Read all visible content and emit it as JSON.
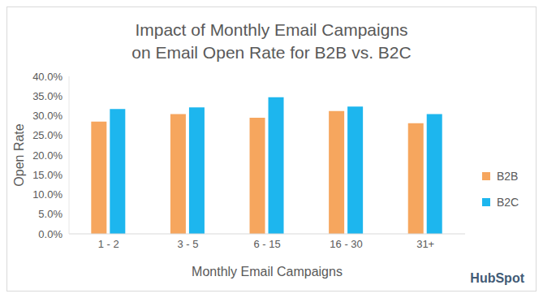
{
  "chart_data": {
    "type": "bar",
    "title": "Impact of Monthly Email Campaigns\non Email Open Rate for B2B vs. B2C",
    "x_label": "Monthly Email Campaigns",
    "y_label": "Open Rate",
    "categories": [
      "1 - 2",
      "3 - 5",
      "6 - 15",
      "16 - 30",
      "31+"
    ],
    "series": [
      {
        "name": "B2B",
        "color": "#F6A65E",
        "values": [
          28.5,
          30.4,
          29.5,
          31.2,
          28.1
        ]
      },
      {
        "name": "B2C",
        "color": "#1DB6EE",
        "values": [
          31.7,
          32.1,
          34.7,
          32.3,
          30.4
        ]
      }
    ],
    "ylim": [
      0,
      40
    ],
    "yticks": [
      {
        "value": 0,
        "label": "0.0%"
      },
      {
        "value": 5,
        "label": "5.0%"
      },
      {
        "value": 10,
        "label": "10.0%"
      },
      {
        "value": 15,
        "label": "15.0%"
      },
      {
        "value": 20,
        "label": "20.0%"
      },
      {
        "value": 25,
        "label": "25.0%"
      },
      {
        "value": 30,
        "label": "30.0%"
      },
      {
        "value": 35,
        "label": "35.0%"
      },
      {
        "value": 40,
        "label": "40.0%"
      }
    ],
    "grid": false,
    "legend": "right",
    "annotations": [
      "HubSpot"
    ]
  }
}
